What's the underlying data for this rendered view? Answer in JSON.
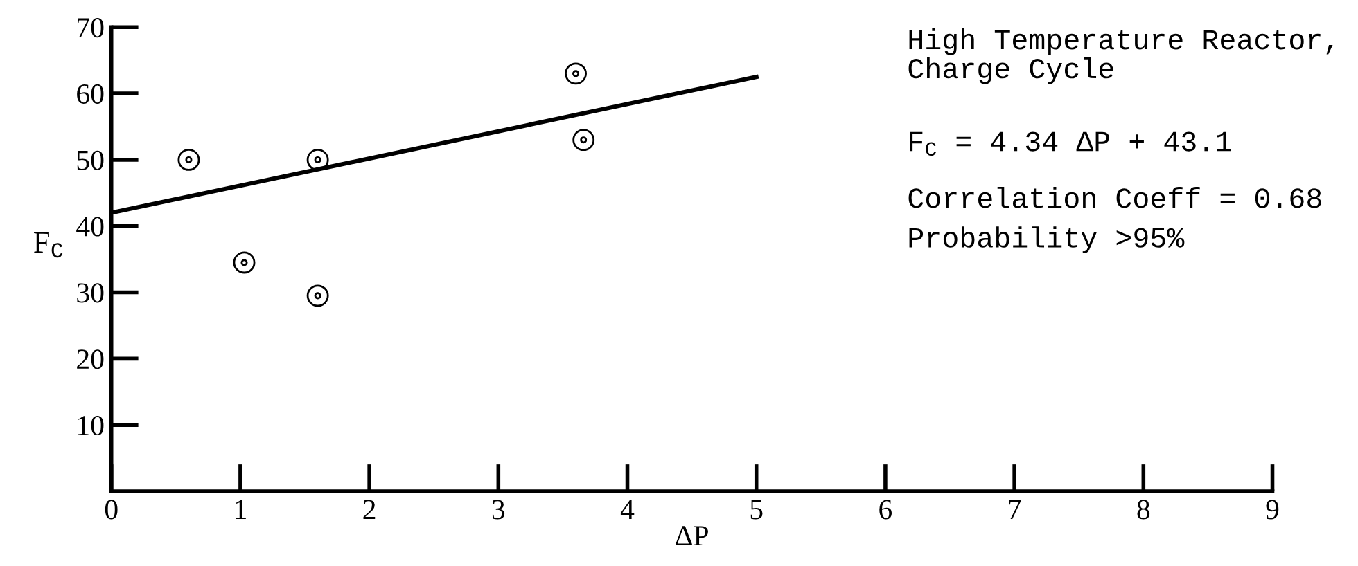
{
  "chart_data": {
    "type": "scatter",
    "xlabel": "ΔP",
    "ylabel": "F$_{C}$",
    "series": [
      {
        "color": "#000000",
        "marker": "circle",
        "x": [
          0.6,
          1.03,
          1.6,
          1.6,
          3.6,
          3.66
        ],
        "values": [
          50,
          34.5,
          50,
          29.5,
          63,
          53
        ]
      },
      {
        "type": "line",
        "color": "#000000",
        "marker": "none",
        "x": [
          0,
          5
        ],
        "values": [
          42,
          62.5
        ]
      }
    ],
    "xlim": [
      0,
      9
    ],
    "xticks": [
      0,
      1,
      2,
      3,
      4,
      5,
      6,
      7,
      8,
      9
    ],
    "ylim": [
      0,
      70
    ],
    "yticks": [
      10,
      20,
      30,
      40,
      50,
      60,
      70
    ],
    "grid": false,
    "legend": false,
    "annotations": [
      "High Temperature Reactor,\nCharge Cycle",
      "F$_{C}$ = 4.34 ΔP + 43.1",
      "Correlation Coeff = 0.68",
      "Probability >95%"
    ]
  }
}
